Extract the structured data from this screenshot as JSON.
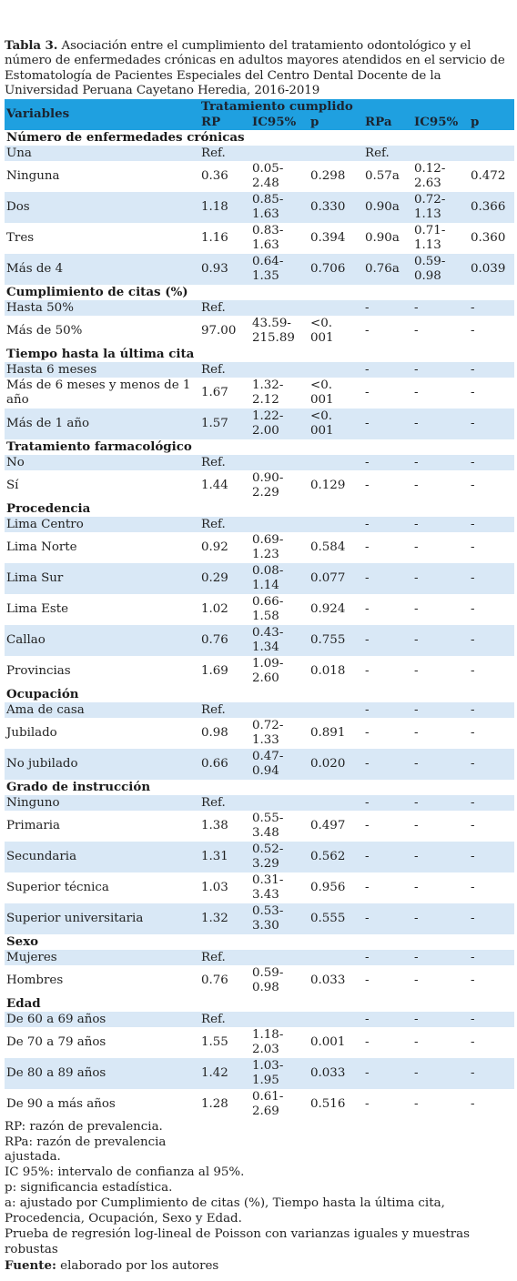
{
  "caption": {
    "label": "Tabla 3.",
    "text": "Asociación entre el cumplimiento del tratamiento odontológico y el número de enfermedades crónicas en adultos mayores atendidos en el servicio de Estomatología de Pacientes Especiales del Centro Dental Docente de la Universidad Peruana Cayetano Heredia, 2016-2019"
  },
  "header": {
    "variables": "Variables",
    "group": "Tratamiento cumplido",
    "rp": "RP",
    "ic1": "IC95%",
    "p1": "p",
    "rpa": "RPa",
    "ic2": "IC95%",
    "p2": "p"
  },
  "sections": [
    {
      "title": "Número de enfermedades crónicas",
      "rows": [
        {
          "v": "Una",
          "rp": "Ref.",
          "ic": "",
          "p": "",
          "rpa": "Ref.",
          "ic2": "",
          "p2": ""
        },
        {
          "v": "Ninguna",
          "rp": "0.36",
          "ic": "0.05-\n2.48",
          "p": "0.298",
          "rpa": "0.57a",
          "ic2": "0.12-\n2.63",
          "p2": "0.472"
        },
        {
          "v": "Dos",
          "rp": "1.18",
          "ic": "0.85-\n1.63",
          "p": "0.330",
          "rpa": "0.90a",
          "ic2": "0.72-\n1.13",
          "p2": "0.366"
        },
        {
          "v": "Tres",
          "rp": "1.16",
          "ic": "0.83-\n1.63",
          "p": "0.394",
          "rpa": "0.90a",
          "ic2": "0.71-\n1.13",
          "p2": "0.360"
        },
        {
          "v": "Más de 4",
          "rp": "0.93",
          "ic": "0.64-\n1.35",
          "p": "0.706",
          "rpa": "0.76a",
          "ic2": "0.59-\n0.98",
          "p2": "0.039"
        }
      ]
    },
    {
      "title": "Cumplimiento de citas (%)",
      "rows": [
        {
          "v": "Hasta 50%",
          "rp": "Ref.",
          "ic": "",
          "p": "",
          "rpa": "-",
          "ic2": "-",
          "p2": "-"
        },
        {
          "v": "Más de 50%",
          "rp": "97.00",
          "ic": "43.59-\n215.89",
          "p": "<0.\n001",
          "rpa": "-",
          "ic2": "-",
          "p2": "-"
        }
      ]
    },
    {
      "title": "Tiempo hasta la última cita",
      "rows": [
        {
          "v": "Hasta 6 meses",
          "rp": "Ref.",
          "ic": "",
          "p": "",
          "rpa": "-",
          "ic2": "-",
          "p2": "-"
        },
        {
          "v": "Más de 6 meses y menos de 1 año",
          "rp": "1.67",
          "ic": "1.32-\n2.12",
          "p": "<0.\n001",
          "rpa": "-",
          "ic2": "-",
          "p2": "-"
        },
        {
          "v": "Más de 1 año",
          "rp": "1.57",
          "ic": "1.22-\n2.00",
          "p": "<0.\n001",
          "rpa": "-",
          "ic2": "-",
          "p2": "-"
        }
      ]
    },
    {
      "title": "Tratamiento farmacológico",
      "rows": [
        {
          "v": "No",
          "rp": "Ref.",
          "ic": "",
          "p": "",
          "rpa": "-",
          "ic2": "-",
          "p2": "-"
        },
        {
          "v": "Sí",
          "rp": "1.44",
          "ic": "0.90-\n2.29",
          "p": "0.129",
          "rpa": "-",
          "ic2": "-",
          "p2": "-"
        }
      ]
    },
    {
      "title": "Procedencia",
      "rows": [
        {
          "v": "Lima Centro",
          "rp": "Ref.",
          "ic": "",
          "p": "",
          "rpa": "-",
          "ic2": "-",
          "p2": "-"
        },
        {
          "v": "Lima Norte",
          "rp": "0.92",
          "ic": "0.69-\n1.23",
          "p": "0.584",
          "rpa": "-",
          "ic2": "-",
          "p2": "-"
        },
        {
          "v": "Lima Sur",
          "rp": "0.29",
          "ic": "0.08-\n1.14",
          "p": "0.077",
          "rpa": "-",
          "ic2": "-",
          "p2": "-"
        },
        {
          "v": "Lima Este",
          "rp": "1.02",
          "ic": "0.66-\n1.58",
          "p": "0.924",
          "rpa": "-",
          "ic2": "-",
          "p2": "-"
        },
        {
          "v": "Callao",
          "rp": "0.76",
          "ic": "0.43-\n1.34",
          "p": "0.755",
          "rpa": "-",
          "ic2": "-",
          "p2": "-"
        },
        {
          "v": "Provincias",
          "rp": "1.69",
          "ic": "1.09-\n2.60",
          "p": "0.018",
          "rpa": "-",
          "ic2": "-",
          "p2": "-"
        }
      ]
    },
    {
      "title": "Ocupación",
      "rows": [
        {
          "v": "Ama de casa",
          "rp": "Ref.",
          "ic": "",
          "p": "",
          "rpa": "-",
          "ic2": "-",
          "p2": "-"
        },
        {
          "v": "Jubilado",
          "rp": "0.98",
          "ic": "0.72-\n1.33",
          "p": "0.891",
          "rpa": "-",
          "ic2": "-",
          "p2": "-"
        },
        {
          "v": "No jubilado",
          "rp": "0.66",
          "ic": "0.47-\n0.94",
          "p": "0.020",
          "rpa": "-",
          "ic2": "-",
          "p2": "-"
        }
      ]
    },
    {
      "title": "Grado de instrucción",
      "rows": [
        {
          "v": "Ninguno",
          "rp": "Ref.",
          "ic": "",
          "p": "",
          "rpa": "-",
          "ic2": "-",
          "p2": "-"
        },
        {
          "v": "Primaria",
          "rp": "1.38",
          "ic": "0.55-\n3.48",
          "p": "0.497",
          "rpa": "-",
          "ic2": "-",
          "p2": "-"
        },
        {
          "v": "Secundaria",
          "rp": "1.31",
          "ic": "0.52-\n3.29",
          "p": "0.562",
          "rpa": "-",
          "ic2": "-",
          "p2": "-"
        },
        {
          "v": "Superior técnica",
          "rp": "1.03",
          "ic": "0.31-\n3.43",
          "p": "0.956",
          "rpa": "-",
          "ic2": "-",
          "p2": "-"
        },
        {
          "v": "Superior universitaria",
          "rp": "1.32",
          "ic": "0.53-\n3.30",
          "p": "0.555",
          "rpa": "-",
          "ic2": "-",
          "p2": "-"
        }
      ]
    },
    {
      "title": "Sexo",
      "rows": [
        {
          "v": "Mujeres",
          "rp": "Ref.",
          "ic": "",
          "p": "",
          "rpa": "-",
          "ic2": "-",
          "p2": "-"
        },
        {
          "v": "Hombres",
          "rp": "0.76",
          "ic": "0.59-\n0.98",
          "p": "0.033",
          "rpa": "-",
          "ic2": "-",
          "p2": "-"
        }
      ]
    },
    {
      "title": "Edad",
      "rows": [
        {
          "v": "De 60 a 69 años",
          "rp": "Ref.",
          "ic": "",
          "p": "",
          "rpa": "-",
          "ic2": "-",
          "p2": "-"
        },
        {
          "v": "De 70 a 79 años",
          "rp": "1.55",
          "ic": "1.18-\n2.03",
          "p": "0.001",
          "rpa": "-",
          "ic2": "-",
          "p2": "-"
        },
        {
          "v": "De 80 a 89 años",
          "rp": "1.42",
          "ic": "1.03-\n1.95",
          "p": "0.033",
          "rpa": "-",
          "ic2": "-",
          "p2": "-"
        },
        {
          "v": "De 90 a más años",
          "rp": "1.28",
          "ic": "0.61-\n2.69",
          "p": "0.516",
          "rpa": "-",
          "ic2": "-",
          "p2": "-"
        }
      ]
    }
  ],
  "notes": [
    "RP: razón de prevalencia.",
    "RPa: razón de prevalencia ajustada.",
    "IC 95%: intervalo de confianza al 95%.",
    "p: significancia estadística.",
    "a: ajustado por Cumplimiento de citas (%), Tiempo hasta la última cita, Procedencia, Ocupación, Sexo y Edad.",
    "Prueba de regresión log-lineal de Poisson con varianzas iguales y muestras robustas"
  ],
  "source": {
    "label": "Fuente:",
    "text": " elaborado por los autores"
  }
}
